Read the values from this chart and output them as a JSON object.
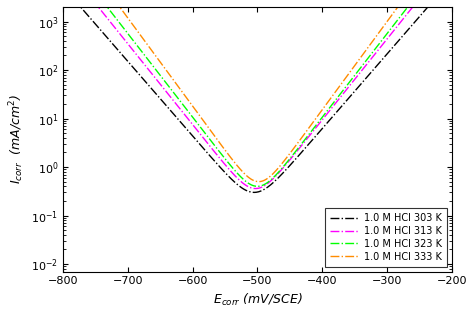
{
  "title": "",
  "xlabel": "E$_{corr}$ (mV/SCE)",
  "ylabel": "I$_{corr}$  (mA/cm$^{2}$)",
  "xlim": [
    -800,
    -200
  ],
  "ylim": [
    0.007,
    2000
  ],
  "xticks": [
    -800,
    -700,
    -600,
    -500,
    -400,
    -300,
    -200
  ],
  "curves": [
    {
      "label": "1.0 M HCl 303 K",
      "color": "black",
      "linestyle": "-.",
      "Ecorr": -505,
      "Icorr": 0.15,
      "ba": 65,
      "bc": 65
    },
    {
      "label": "1.0 M HCl 313 K",
      "color": "magenta",
      "linestyle": "-.",
      "Ecorr": -503,
      "Icorr": 0.18,
      "ba": 60,
      "bc": 60
    },
    {
      "label": "1.0 M HCl 323 K",
      "color": "lime",
      "linestyle": "-.",
      "Ecorr": -500,
      "Icorr": 0.2,
      "ba": 58,
      "bc": 58
    },
    {
      "label": "1.0 M HCl 333 K",
      "color": "darkorange",
      "linestyle": "-.",
      "Ecorr": -498,
      "Icorr": 0.25,
      "ba": 55,
      "bc": 55
    }
  ],
  "legend_loc": "lower right",
  "figsize": [
    4.74,
    3.15
  ],
  "dpi": 100
}
